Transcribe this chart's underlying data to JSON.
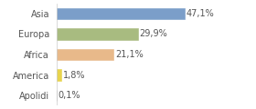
{
  "categories": [
    "Asia",
    "Europa",
    "Africa",
    "America",
    "Apolidi"
  ],
  "values": [
    47.1,
    29.9,
    21.1,
    1.8,
    0.1
  ],
  "labels": [
    "47,1%",
    "29,9%",
    "21,1%",
    "1,8%",
    "0,1%"
  ],
  "bar_colors": [
    "#7b9ec9",
    "#a8bb80",
    "#e8b98a",
    "#e8d44d",
    "#ffffff"
  ],
  "bar_edge_colors": [
    "#7b9ec9",
    "#a8bb80",
    "#e8b98a",
    "#e8d44d",
    "#aaaaaa"
  ],
  "background_color": "#ffffff",
  "text_color": "#555555",
  "label_fontsize": 7.0,
  "value_fontsize": 7.0,
  "xlim": [
    0,
    62
  ],
  "bar_height": 0.55
}
